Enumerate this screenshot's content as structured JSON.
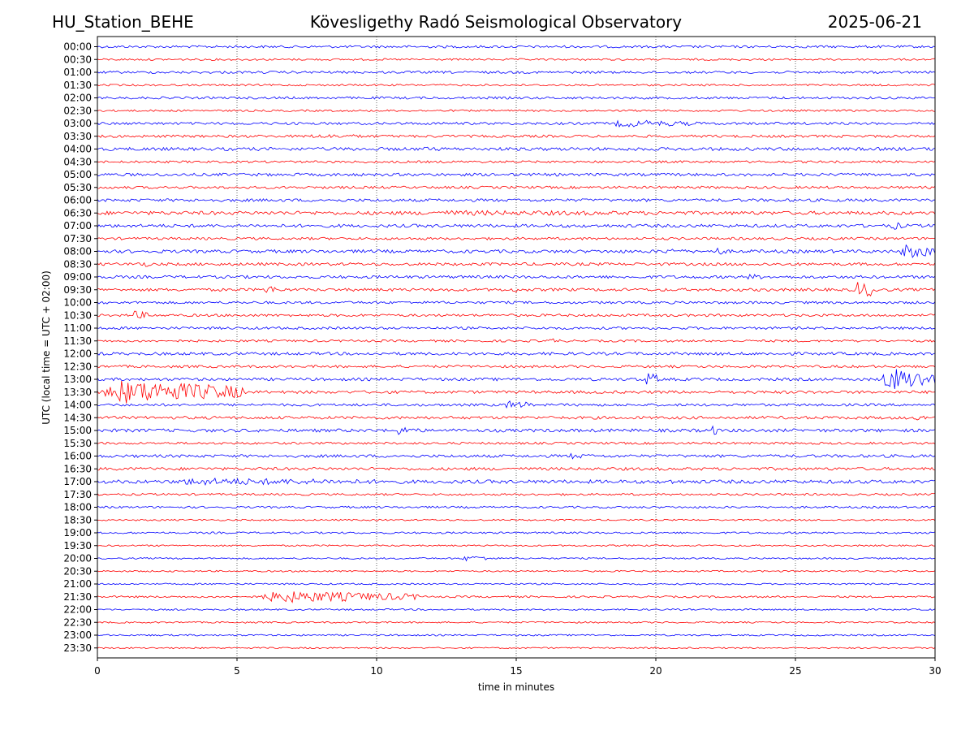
{
  "header": {
    "station": "HU_Station_BEHE",
    "title": "Kövesligethy Radó Seismological Observatory",
    "date": "2025-06-21"
  },
  "chart_data": {
    "type": "line",
    "chart_kind": "helicorder",
    "xlabel": "time in minutes",
    "ylabel": "UTC (local time = UTC + 02:00)",
    "xlim": [
      0,
      30
    ],
    "x_ticks": [
      0,
      5,
      10,
      15,
      20,
      25,
      30
    ],
    "vertical_dotted_gridlines": [
      5,
      10,
      15,
      20,
      25
    ],
    "row_colors": [
      "#0000ff",
      "#ff0000"
    ],
    "rows": [
      "00:00",
      "00:30",
      "01:00",
      "01:30",
      "02:00",
      "02:30",
      "03:00",
      "03:30",
      "04:00",
      "04:30",
      "05:00",
      "05:30",
      "06:00",
      "06:30",
      "07:00",
      "07:30",
      "08:00",
      "08:30",
      "09:00",
      "09:30",
      "10:00",
      "10:30",
      "11:00",
      "11:30",
      "12:00",
      "12:30",
      "13:00",
      "13:30",
      "14:00",
      "14:30",
      "15:00",
      "15:30",
      "16:00",
      "16:30",
      "17:00",
      "17:30",
      "18:00",
      "18:30",
      "19:00",
      "19:30",
      "20:00",
      "20:30",
      "21:00",
      "21:30",
      "22:00",
      "22:30",
      "23:00",
      "23:30"
    ],
    "baseline_amplitude": [
      1.5,
      1.2,
      1.5,
      1.2,
      1.5,
      1.2,
      1.6,
      1.6,
      2.0,
      1.4,
      1.8,
      1.6,
      1.8,
      2.2,
      2.0,
      1.6,
      2.0,
      1.8,
      1.8,
      1.8,
      1.6,
      1.6,
      1.6,
      1.4,
      1.8,
      1.6,
      1.8,
      1.8,
      1.6,
      1.8,
      2.0,
      1.4,
      1.8,
      1.8,
      2.2,
      1.3,
      1.3,
      1.0,
      1.2,
      1.0,
      1.0,
      1.0,
      1.0,
      1.2,
      1.0,
      1.0,
      1.0,
      0.9
    ],
    "events": [
      {
        "row": "03:00",
        "start": 18.2,
        "end": 21.5,
        "amplitude": 5
      },
      {
        "row": "03:30",
        "start": 7.3,
        "end": 10.5,
        "amplitude": 3
      },
      {
        "row": "04:00",
        "start": 11.5,
        "end": 13.0,
        "amplitude": 3
      },
      {
        "row": "06:30",
        "start": 9.5,
        "end": 27.0,
        "amplitude": 3.5
      },
      {
        "row": "07:00",
        "start": 28.4,
        "end": 28.9,
        "amplitude": 6
      },
      {
        "row": "08:00",
        "start": 20.3,
        "end": 21.0,
        "amplitude": 5
      },
      {
        "row": "08:00",
        "start": 22.1,
        "end": 22.5,
        "amplitude": 6
      },
      {
        "row": "08:00",
        "start": 28.7,
        "end": 30.0,
        "amplitude": 10
      },
      {
        "row": "08:30",
        "start": 1.4,
        "end": 1.9,
        "amplitude": 5
      },
      {
        "row": "09:00",
        "start": 23.2,
        "end": 24.0,
        "amplitude": 4
      },
      {
        "row": "09:30",
        "start": 5.9,
        "end": 6.6,
        "amplitude": 6
      },
      {
        "row": "09:30",
        "start": 14.8,
        "end": 15.3,
        "amplitude": 4
      },
      {
        "row": "09:30",
        "start": 27.1,
        "end": 28.0,
        "amplitude": 12
      },
      {
        "row": "10:30",
        "start": 1.1,
        "end": 1.8,
        "amplitude": 7
      },
      {
        "row": "11:30",
        "start": 16.1,
        "end": 16.6,
        "amplitude": 4
      },
      {
        "row": "13:00",
        "start": 19.6,
        "end": 20.1,
        "amplitude": 10
      },
      {
        "row": "13:00",
        "start": 28.0,
        "end": 30.0,
        "amplitude": 16
      },
      {
        "row": "13:30",
        "start": 0.0,
        "end": 5.2,
        "amplitude": 16
      },
      {
        "row": "14:00",
        "start": 14.5,
        "end": 15.6,
        "amplitude": 6
      },
      {
        "row": "14:30",
        "start": 29.2,
        "end": 30.0,
        "amplitude": 4
      },
      {
        "row": "15:00",
        "start": 10.6,
        "end": 11.5,
        "amplitude": 6
      },
      {
        "row": "15:00",
        "start": 21.9,
        "end": 22.2,
        "amplitude": 9
      },
      {
        "row": "16:00",
        "start": 16.8,
        "end": 17.8,
        "amplitude": 4
      },
      {
        "row": "17:00",
        "start": 2.0,
        "end": 11.0,
        "amplitude": 5
      },
      {
        "row": "17:00",
        "start": 20.4,
        "end": 20.9,
        "amplitude": 4
      },
      {
        "row": "20:00",
        "start": 13.0,
        "end": 14.3,
        "amplitude": 4
      },
      {
        "row": "21:30",
        "start": 5.5,
        "end": 11.5,
        "amplitude": 8
      }
    ]
  }
}
